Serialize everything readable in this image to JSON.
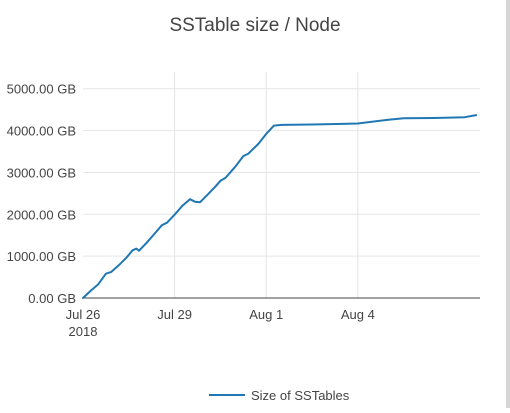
{
  "chart_data": {
    "type": "line",
    "title": "SSTable size / Node",
    "xlabel": "",
    "ylabel": "",
    "x_range": [
      "2018-07-26",
      "2018-08-08"
    ],
    "x_ticks": [
      {
        "date": "2018-07-26",
        "label": "Jul 26",
        "sublabel": "2018"
      },
      {
        "date": "2018-07-29",
        "label": "Jul 29",
        "sublabel": ""
      },
      {
        "date": "2018-08-01",
        "label": "Aug 1",
        "sublabel": ""
      },
      {
        "date": "2018-08-04",
        "label": "Aug 4",
        "sublabel": ""
      }
    ],
    "y_range": [
      0,
      5400
    ],
    "y_ticks": [
      {
        "value": 0,
        "label": "0.00 GB"
      },
      {
        "value": 1000,
        "label": "1000.00 GB"
      },
      {
        "value": 2000,
        "label": "2000.00 GB"
      },
      {
        "value": 3000,
        "label": "3000.00 GB"
      },
      {
        "value": 4000,
        "label": "4000.00 GB"
      },
      {
        "value": 5000,
        "label": "5000.00 GB"
      }
    ],
    "grid": true,
    "legend_position": "bottom-center",
    "series": [
      {
        "name": "Size of SSTables",
        "color": "#1f77b4",
        "points": [
          [
            "2018-07-26 00:00",
            0
          ],
          [
            "2018-07-26 06:00",
            170
          ],
          [
            "2018-07-26 12:00",
            330
          ],
          [
            "2018-07-26 18:00",
            580
          ],
          [
            "2018-07-26 22:00",
            620
          ],
          [
            "2018-07-27 04:00",
            780
          ],
          [
            "2018-07-27 10:00",
            960
          ],
          [
            "2018-07-27 15:00",
            1140
          ],
          [
            "2018-07-27 18:00",
            1180
          ],
          [
            "2018-07-27 20:00",
            1130
          ],
          [
            "2018-07-28 02:00",
            1320
          ],
          [
            "2018-07-28 08:00",
            1530
          ],
          [
            "2018-07-28 14:00",
            1740
          ],
          [
            "2018-07-28 18:00",
            1800
          ],
          [
            "2018-07-29 00:00",
            1990
          ],
          [
            "2018-07-29 06:00",
            2200
          ],
          [
            "2018-07-29 12:00",
            2360
          ],
          [
            "2018-07-29 16:00",
            2300
          ],
          [
            "2018-07-29 20:00",
            2290
          ],
          [
            "2018-07-30 02:00",
            2470
          ],
          [
            "2018-07-30 08:00",
            2660
          ],
          [
            "2018-07-30 12:00",
            2800
          ],
          [
            "2018-07-30 16:00",
            2870
          ],
          [
            "2018-07-31 00:00",
            3150
          ],
          [
            "2018-07-31 06:00",
            3390
          ],
          [
            "2018-07-31 10:00",
            3450
          ],
          [
            "2018-07-31 18:00",
            3690
          ],
          [
            "2018-08-01 00:00",
            3920
          ],
          [
            "2018-08-01 06:00",
            4120
          ],
          [
            "2018-08-01 12:00",
            4135
          ],
          [
            "2018-08-02 12:00",
            4145
          ],
          [
            "2018-08-03 12:00",
            4160
          ],
          [
            "2018-08-04 00:00",
            4170
          ],
          [
            "2018-08-05 00:00",
            4260
          ],
          [
            "2018-08-05 12:00",
            4295
          ],
          [
            "2018-08-06 12:00",
            4300
          ],
          [
            "2018-08-07 12:00",
            4320
          ],
          [
            "2018-08-07 21:00",
            4370
          ]
        ]
      }
    ]
  }
}
